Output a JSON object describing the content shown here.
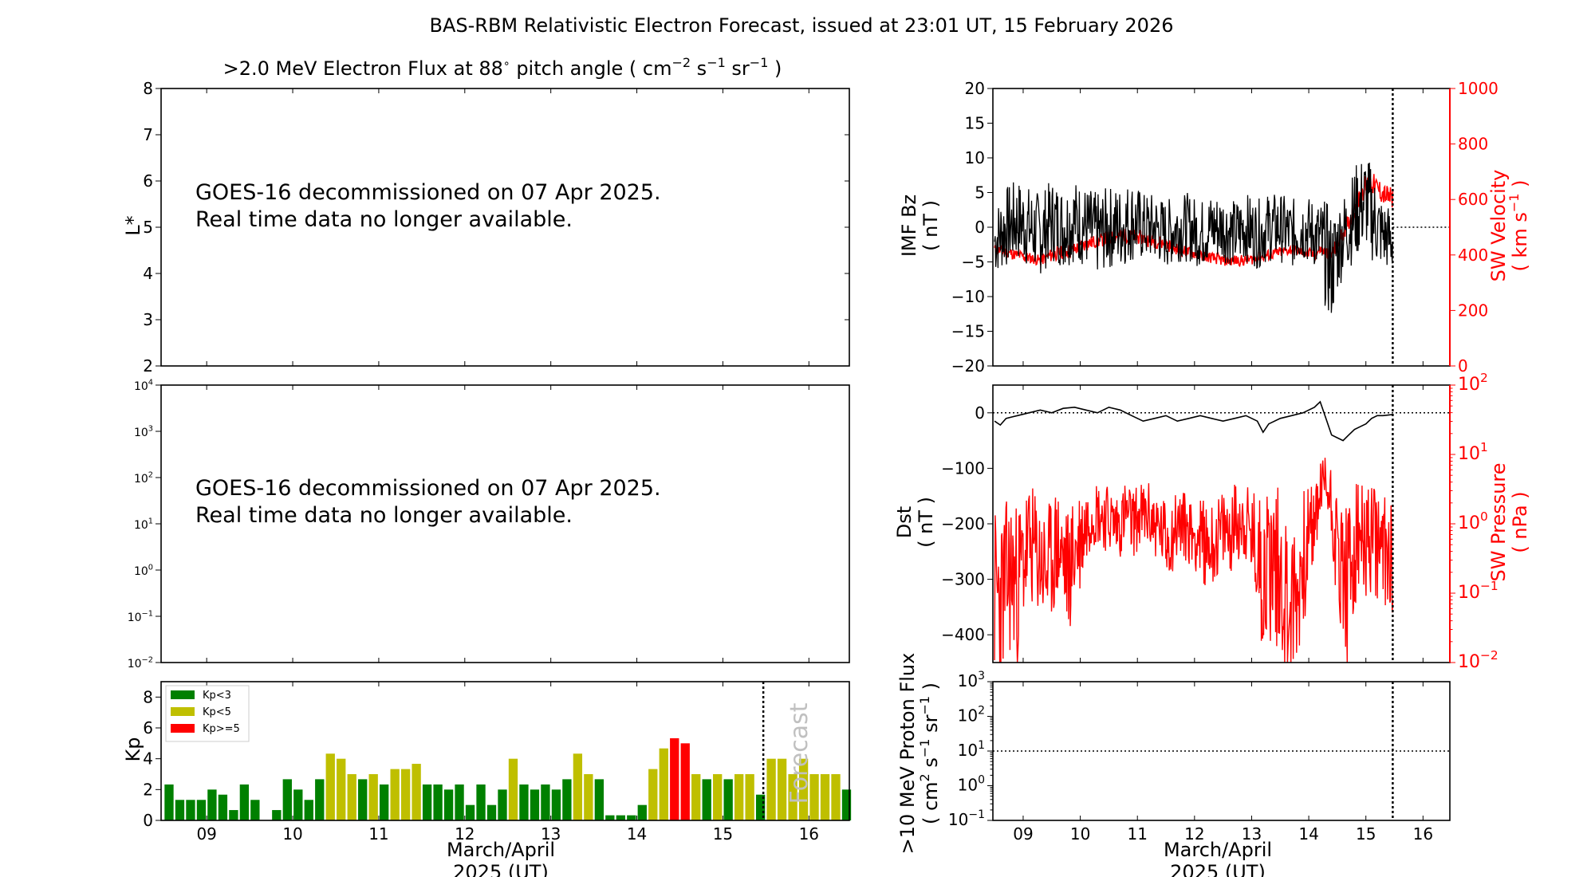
{
  "title": "BAS-RBM Relativistic Electron Forecast, issued at 23:01 UT, 15 February 2026",
  "colors": {
    "kp_low": "#008000",
    "kp_mid": "#bfbf00",
    "kp_high": "#ff0000",
    "series_red": "#ff0000",
    "forecast_text": "#c0c0c0"
  },
  "common_x": {
    "range": [
      8.47,
      16.47
    ],
    "ticks": [
      9,
      10,
      11,
      12,
      13,
      14,
      15,
      16
    ],
    "tick_labels": [
      "09",
      "10",
      "11",
      "12",
      "13",
      "14",
      "15",
      "16"
    ],
    "xlabel_line1": "March/April",
    "xlabel_line2": "2025 (UT)",
    "now_marker": 15.47
  },
  "chart_data": [
    {
      "id": "flux_lstar",
      "type": "heatmap",
      "title_main": ">2.0 MeV Electron Flux at 88",
      "title_deg": "∘",
      "title_unit_open": " pitch angle ( cm",
      "title_exp1": "−2",
      "title_s": " s",
      "title_exp2": "−1",
      "title_sr": " sr",
      "title_exp3": "−1",
      "title_close": " )",
      "ylabel": "L*",
      "ylim": [
        2,
        8
      ],
      "yticks": [
        2,
        3,
        4,
        5,
        6,
        7,
        8
      ],
      "ytick_labels": [
        "2",
        "3",
        "4",
        "5",
        "6",
        "7",
        "8"
      ],
      "message_line1": "GOES-16 decommissioned on 07 Apr 2025.",
      "message_line2": "Real time data no longer available."
    },
    {
      "id": "flux_log",
      "type": "line",
      "ylim": [
        -2,
        4
      ],
      "yscale": "log",
      "yticks": [
        -2,
        -1,
        0,
        1,
        2,
        3,
        4
      ],
      "ytick_base": "10",
      "ytick_exps": [
        "−2",
        "−1",
        "0",
        "1",
        "2",
        "3",
        "4"
      ],
      "message_line1": "GOES-16 decommissioned on 07 Apr 2025.",
      "message_line2": "Real time data no longer available."
    },
    {
      "id": "kp",
      "type": "bar",
      "ylabel": "Kp",
      "ylim": [
        0,
        9
      ],
      "yticks": [
        0,
        2,
        4,
        6,
        8
      ],
      "ytick_labels": [
        "0",
        "2",
        "4",
        "6",
        "8"
      ],
      "forecast_label": "Forecast",
      "legend": [
        "Kp<3",
        "Kp<5",
        "Kp>=5"
      ],
      "bar_start": 8.5,
      "bar_width_days": 0.125,
      "values": [
        2.33,
        1.33,
        1.33,
        1.33,
        2.0,
        1.67,
        0.67,
        2.33,
        1.33,
        0,
        0.67,
        2.67,
        2.0,
        1.33,
        2.67,
        4.33,
        4.0,
        3.0,
        2.67,
        3.0,
        2.33,
        3.33,
        3.33,
        3.67,
        2.33,
        2.33,
        2.0,
        2.33,
        1.0,
        2.33,
        1.0,
        2.0,
        4.0,
        2.33,
        2.0,
        2.33,
        2.0,
        2.67,
        4.33,
        3.0,
        2.67,
        0.33,
        0.33,
        0.33,
        1.0,
        3.33,
        4.67,
        5.33,
        5.0,
        3.0,
        2.67,
        3.0,
        2.67,
        3.0,
        3.0,
        1.67,
        4.0,
        4.0,
        3.0,
        4.0,
        3.0,
        3.0,
        3.0,
        2.0
      ]
    },
    {
      "id": "imf_sw",
      "type": "line",
      "ylabel_line1": "IMF Bz",
      "ylabel_line2": "( nT )",
      "ylim": [
        -20,
        20
      ],
      "yticks": [
        -20,
        -15,
        -10,
        -5,
        0,
        5,
        10,
        15,
        20
      ],
      "ytick_labels": [
        "−20",
        "−15",
        "−10",
        "−5",
        "0",
        "5",
        "10",
        "15",
        "20"
      ],
      "ylabel2_line1": "SW Velocity",
      "ylabel2_line2a": "( km s",
      "ylabel2_exp": "−1",
      "ylabel2_line2b": " )",
      "y2lim": [
        0,
        1000
      ],
      "y2ticks": [
        0,
        200,
        400,
        600,
        800,
        1000
      ],
      "y2tick_labels": [
        "0",
        "200",
        "400",
        "600",
        "800",
        "1000"
      ],
      "series": [
        {
          "name": "IMF Bz",
          "color": "#000000",
          "x": [
            8.5,
            8.7,
            8.9,
            9.1,
            9.3,
            9.5,
            9.7,
            9.9,
            10.1,
            10.3,
            10.5,
            10.7,
            10.9,
            11.1,
            11.3,
            11.5,
            11.7,
            11.9,
            12.1,
            12.3,
            12.5,
            12.7,
            12.9,
            13.1,
            13.3,
            13.5,
            13.7,
            13.9,
            14.1,
            14.2,
            14.3,
            14.4,
            14.5,
            14.6,
            14.7,
            14.8,
            14.9,
            15.0,
            15.1,
            15.2,
            15.3,
            15.47
          ],
          "values": [
            -2,
            0,
            1,
            0,
            -1,
            1,
            0,
            1,
            0,
            -1,
            0,
            0,
            1,
            0,
            0,
            -1,
            0,
            0,
            -1,
            0,
            0,
            -1,
            0,
            -1,
            0,
            0,
            -1,
            0,
            -1,
            -2,
            -4,
            -6,
            -3,
            -1,
            0,
            2,
            3,
            4,
            2,
            0,
            -1,
            -2
          ],
          "spread": [
            5,
            6,
            6,
            6,
            6,
            6,
            6,
            6,
            6,
            6,
            6,
            6,
            6,
            5,
            5,
            5,
            5,
            5,
            5,
            5,
            5,
            5,
            5,
            5,
            5,
            5,
            5,
            5,
            5,
            6,
            8,
            8,
            7,
            6,
            6,
            7,
            7,
            7,
            7,
            6,
            5,
            5
          ]
        },
        {
          "name": "SW Velocity",
          "color": "#ff0000",
          "axis": "right",
          "x": [
            8.5,
            8.7,
            8.9,
            9.1,
            9.3,
            9.5,
            9.7,
            9.9,
            10.1,
            10.3,
            10.5,
            10.7,
            10.9,
            11.1,
            11.3,
            11.5,
            11.7,
            11.9,
            12.1,
            12.3,
            12.5,
            12.7,
            12.9,
            13.1,
            13.3,
            13.5,
            13.7,
            13.9,
            14.1,
            14.2,
            14.3,
            14.4,
            14.5,
            14.6,
            14.7,
            14.8,
            14.9,
            15.0,
            15.1,
            15.2,
            15.3,
            15.47
          ],
          "values": [
            420,
            410,
            400,
            390,
            380,
            400,
            410,
            420,
            440,
            450,
            460,
            470,
            470,
            460,
            450,
            440,
            420,
            410,
            400,
            390,
            380,
            380,
            380,
            390,
            400,
            410,
            420,
            410,
            400,
            420,
            410,
            400,
            440,
            480,
            520,
            560,
            620,
            650,
            660,
            640,
            620,
            600
          ],
          "spread": [
            20,
            20,
            20,
            20,
            20,
            25,
            25,
            25,
            25,
            25,
            25,
            25,
            25,
            25,
            25,
            25,
            20,
            20,
            20,
            20,
            20,
            20,
            20,
            20,
            20,
            20,
            20,
            20,
            20,
            20,
            20,
            25,
            30,
            30,
            30,
            35,
            40,
            40,
            40,
            40,
            40,
            40
          ]
        }
      ]
    },
    {
      "id": "dst_pressure",
      "type": "line",
      "ylabel_line1": "Dst",
      "ylabel_line2": "( nT )",
      "ylim": [
        -450,
        50
      ],
      "yticks": [
        -400,
        -300,
        -200,
        -100,
        0
      ],
      "ytick_labels": [
        "−400",
        "−300",
        "−200",
        "−100",
        "0"
      ],
      "ylabel2_line1": "SW Pressure",
      "ylabel2_line2": "( nPa )",
      "y2scale": "log",
      "y2lim": [
        -2,
        2
      ],
      "y2ticks": [
        -2,
        -1,
        0,
        1,
        2
      ],
      "y2tick_base": "10",
      "y2tick_exps": [
        "−2",
        "−1",
        "0",
        "1",
        "2"
      ],
      "series": [
        {
          "name": "Dst",
          "color": "#000000",
          "x": [
            8.5,
            8.6,
            8.7,
            8.9,
            9.1,
            9.3,
            9.5,
            9.7,
            9.9,
            10.1,
            10.3,
            10.5,
            10.7,
            10.9,
            11.1,
            11.3,
            11.5,
            11.7,
            11.9,
            12.1,
            12.3,
            12.5,
            12.7,
            12.9,
            13.1,
            13.2,
            13.3,
            13.5,
            13.7,
            13.9,
            14.1,
            14.2,
            14.3,
            14.4,
            14.5,
            14.6,
            14.7,
            14.8,
            14.9,
            15.0,
            15.1,
            15.2,
            15.3,
            15.47
          ],
          "values": [
            -15,
            -22,
            -10,
            -5,
            0,
            5,
            0,
            8,
            10,
            5,
            0,
            10,
            5,
            -5,
            -15,
            -10,
            -5,
            -15,
            -10,
            -5,
            -10,
            -15,
            -10,
            -5,
            -15,
            -35,
            -20,
            -10,
            -5,
            0,
            10,
            20,
            -10,
            -40,
            -45,
            -50,
            -40,
            -30,
            -25,
            -20,
            -10,
            -5,
            -5,
            -3
          ]
        },
        {
          "name": "SW Pressure",
          "color": "#ff0000",
          "axis": "right",
          "log": true,
          "x": [
            8.5,
            8.6,
            8.7,
            8.8,
            8.9,
            9.0,
            9.1,
            9.2,
            9.3,
            9.4,
            9.5,
            9.6,
            9.7,
            9.8,
            9.9,
            10.0,
            10.1,
            10.2,
            10.3,
            10.4,
            10.5,
            10.6,
            10.7,
            10.8,
            10.9,
            11.0,
            11.1,
            11.2,
            11.3,
            11.4,
            11.5,
            11.6,
            11.7,
            11.8,
            11.9,
            12.0,
            12.1,
            12.2,
            12.3,
            12.4,
            12.5,
            12.6,
            12.7,
            12.8,
            12.9,
            13.0,
            13.1,
            13.2,
            13.3,
            13.4,
            13.5,
            13.6,
            13.7,
            13.8,
            13.9,
            14.0,
            14.1,
            14.2,
            14.3,
            14.4,
            14.5,
            14.6,
            14.7,
            14.8,
            14.9,
            15.0,
            15.1,
            15.2,
            15.3,
            15.47
          ],
          "values": [
            0.1,
            0.08,
            0.15,
            0.2,
            0.12,
            0.3,
            0.5,
            0.4,
            0.3,
            0.2,
            0.3,
            0.5,
            0.3,
            0.2,
            0.4,
            0.6,
            1.0,
            1.5,
            1.5,
            1.3,
            1.2,
            1.0,
            1.0,
            1.5,
            1.0,
            1.2,
            1.3,
            1.3,
            1.0,
            0.8,
            0.6,
            0.7,
            1.0,
            1.0,
            0.8,
            0.7,
            0.6,
            0.5,
            0.5,
            0.6,
            0.8,
            0.7,
            1.0,
            1.2,
            1.0,
            0.6,
            0.4,
            0.2,
            0.3,
            0.3,
            0.2,
            0.1,
            0.06,
            0.1,
            0.3,
            0.6,
            1.0,
            3.0,
            4.0,
            2.0,
            0.4,
            0.2,
            0.1,
            0.4,
            0.6,
            0.5,
            0.6,
            0.5,
            0.4,
            0.4
          ],
          "spread": [
            1.3,
            1.3,
            1.2,
            1.2,
            1.2,
            1.0,
            0.9,
            0.9,
            0.9,
            0.9,
            0.9,
            0.9,
            0.9,
            0.9,
            0.9,
            0.8,
            0.6,
            0.5,
            0.5,
            0.5,
            0.5,
            0.5,
            0.5,
            0.5,
            0.5,
            0.5,
            0.5,
            0.5,
            0.5,
            0.5,
            0.6,
            0.6,
            0.5,
            0.5,
            0.5,
            0.5,
            0.6,
            0.6,
            0.6,
            0.6,
            0.6,
            0.6,
            0.6,
            0.6,
            0.6,
            0.7,
            0.9,
            1.2,
            1.2,
            1.2,
            1.2,
            1.2,
            1.3,
            1.2,
            1.0,
            0.8,
            0.6,
            0.5,
            0.5,
            0.6,
            0.9,
            1.2,
            1.3,
            1.1,
            0.8,
            0.8,
            0.8,
            0.8,
            0.8,
            0.9
          ]
        }
      ]
    },
    {
      "id": "proton",
      "type": "line",
      "ylabel_line1": ">10 MeV Proton Flux",
      "ylabel_line2a": "( cm",
      "ylabel_exp1": "2",
      "ylabel_line2b": " s",
      "ylabel_exp2": "−1",
      "ylabel_line2c": " sr",
      "ylabel_exp3": "−1",
      "ylabel_line2d": " )",
      "ylim": [
        -1,
        3
      ],
      "yscale": "log",
      "yticks": [
        -1,
        0,
        1,
        2,
        3
      ],
      "ytick_base": "10",
      "ytick_exps": [
        "−1",
        "0",
        "1",
        "2",
        "3"
      ],
      "threshold": 1
    }
  ]
}
